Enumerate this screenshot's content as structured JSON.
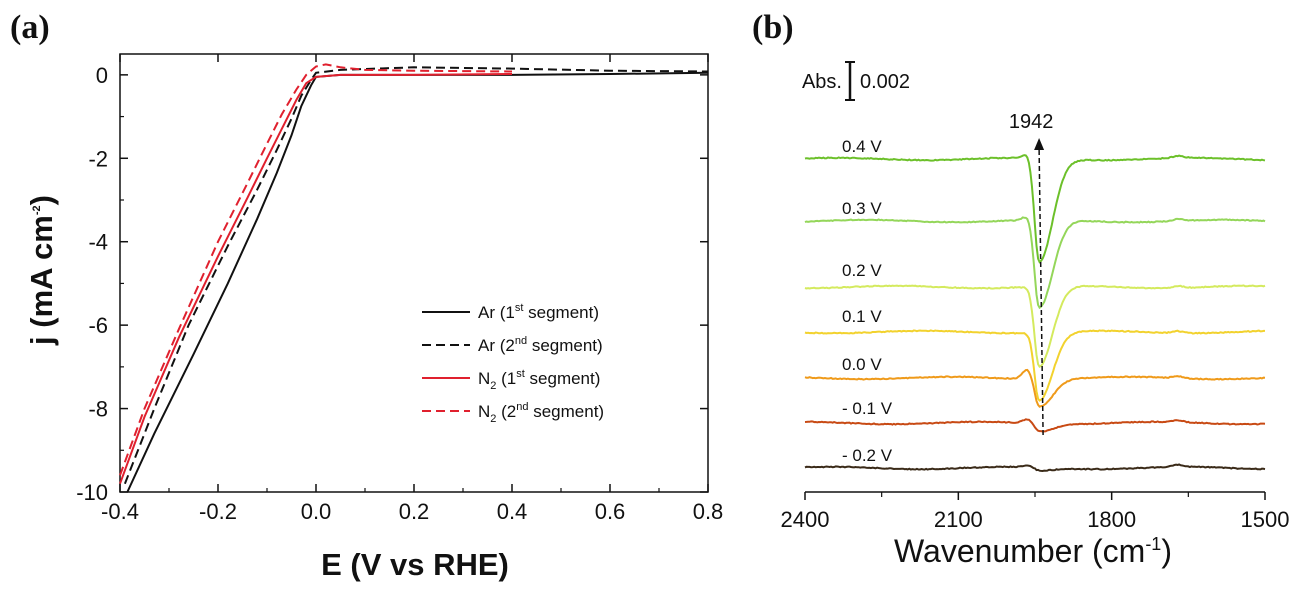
{
  "chart_data": [
    {
      "panel": "(a)",
      "type": "line",
      "xlabel": "E (V vs RHE)",
      "ylabel": "j (mA cm-2)",
      "xlim": [
        -0.4,
        0.8
      ],
      "ylim": [
        -10,
        0.5
      ],
      "xticks": [
        -0.4,
        -0.2,
        0.0,
        0.2,
        0.4,
        0.6,
        0.8
      ],
      "xtick_labels": [
        "-0.4",
        "-0.2",
        "0.0",
        "0.2",
        "0.4",
        "0.6",
        "0.8"
      ],
      "yticks": [
        0,
        -2,
        -4,
        -6,
        -8,
        -10
      ],
      "ytick_labels": [
        "0",
        "-2",
        "-4",
        "-6",
        "-8",
        "-10"
      ],
      "legend_placement": "center-right",
      "grid": false,
      "series": [
        {
          "name": "Ar (1st segment)",
          "legend_base": "Ar (1",
          "legend_sup": "st",
          "legend_rest": " segment)",
          "color": "#111111",
          "dash": "solid",
          "x": [
            -0.385,
            -0.33,
            -0.25,
            -0.18,
            -0.12,
            -0.08,
            -0.05,
            -0.03,
            -0.01,
            0.0,
            0.05,
            0.2,
            0.4,
            0.6,
            0.8
          ],
          "y": [
            -10.0,
            -8.6,
            -6.7,
            -5.0,
            -3.45,
            -2.35,
            -1.45,
            -0.75,
            -0.25,
            -0.05,
            0.0,
            0.0,
            0.0,
            0.02,
            0.05
          ]
        },
        {
          "name": "Ar (2nd segment)",
          "legend_base": "Ar (2",
          "legend_sup": "nd",
          "legend_rest": " segment)",
          "color": "#111111",
          "dash": "dashed",
          "x": [
            -0.39,
            -0.33,
            -0.26,
            -0.18,
            -0.12,
            -0.08,
            -0.05,
            -0.03,
            -0.01,
            0.0,
            0.05,
            0.2,
            0.4,
            0.6,
            0.8
          ],
          "y": [
            -9.8,
            -8.0,
            -6.0,
            -4.1,
            -2.75,
            -1.8,
            -1.05,
            -0.5,
            -0.12,
            0.05,
            0.12,
            0.18,
            0.15,
            0.1,
            0.08
          ]
        },
        {
          "name": "N2 (1st segment)",
          "legend_base": "N",
          "legend_sub": "2",
          "legend_mid": " (1",
          "legend_sup": "st",
          "legend_rest": " segment)",
          "color": "#e0202e",
          "dash": "solid",
          "x": [
            -0.4,
            -0.35,
            -0.28,
            -0.2,
            -0.14,
            -0.1,
            -0.07,
            -0.04,
            -0.02,
            0.0,
            0.05,
            0.2,
            0.4
          ],
          "y": [
            -9.8,
            -8.2,
            -6.3,
            -4.35,
            -2.95,
            -2.0,
            -1.3,
            -0.6,
            -0.2,
            -0.05,
            0.0,
            0.0,
            0.02
          ]
        },
        {
          "name": "N2 (2nd segment)",
          "legend_base": "N",
          "legend_sub": "2",
          "legend_mid": " (2",
          "legend_sup": "nd",
          "legend_rest": " segment)",
          "color": "#e0202e",
          "dash": "dashed",
          "x": [
            -0.4,
            -0.35,
            -0.28,
            -0.2,
            -0.14,
            -0.1,
            -0.07,
            -0.04,
            -0.02,
            0.0,
            0.02,
            0.05,
            0.1,
            0.2,
            0.4
          ],
          "y": [
            -9.6,
            -8.0,
            -6.1,
            -4.0,
            -2.6,
            -1.65,
            -0.95,
            -0.35,
            0.0,
            0.2,
            0.25,
            0.18,
            0.12,
            0.1,
            0.08
          ]
        }
      ]
    },
    {
      "panel": "(b)",
      "type": "line",
      "xlabel": "Wavenumber (cm-1)",
      "xlim": [
        2400,
        1500
      ],
      "xticks": [
        2400,
        2100,
        1800,
        1500
      ],
      "xtick_labels": [
        "2400",
        "2100",
        "1800",
        "1500"
      ],
      "yticks_shown": false,
      "scale_bar_label": "Abs.",
      "scale_bar_value": "0.002",
      "annotation": "1942",
      "annotation_x": 1942,
      "series": [
        {
          "name": "0.4 V",
          "color": "#6cc02a",
          "dip": 0.26,
          "bump": 0.01
        },
        {
          "name": "0.3 V",
          "color": "#94d65a",
          "dip": 0.22,
          "bump": 0.01
        },
        {
          "name": "0.2 V",
          "color": "#d4ea5e",
          "dip": 0.2,
          "bump": 0.0
        },
        {
          "name": "0.1 V",
          "color": "#f2d22e",
          "dip": 0.17,
          "bump": 0.0
        },
        {
          "name": "0.0 V",
          "color": "#ef9a1a",
          "dip": 0.07,
          "bump": 0.025
        },
        {
          "name": "- 0.1 V",
          "color": "#c84a14",
          "dip": 0.02,
          "bump": 0.01
        },
        {
          "name": "- 0.2 V",
          "color": "#3a2a18",
          "dip": 0.008,
          "bump": 0.004
        }
      ]
    }
  ]
}
